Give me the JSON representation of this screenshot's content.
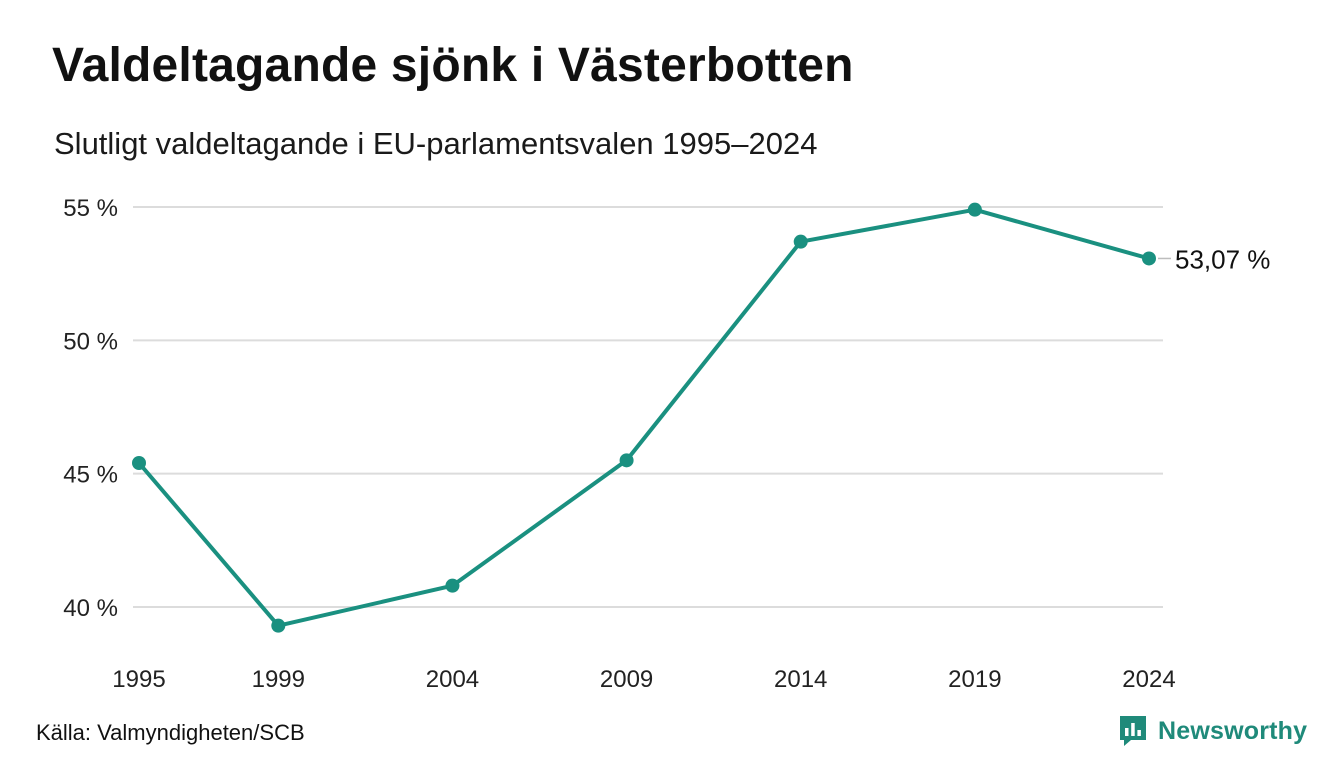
{
  "title": "Valdeltagande sjönk i Västerbotten",
  "subtitle": "Slutligt valdeltagande i EU-parlamentsvalen 1995–2024",
  "source": "Källa: Valmyndigheten/SCB",
  "brand": {
    "name": "Newsworthy",
    "icon": "newsworthy-logo-icon",
    "color": "#1f8a7a"
  },
  "chart_data": {
    "type": "line",
    "x": [
      1995,
      1999,
      2004,
      2009,
      2014,
      2019,
      2024
    ],
    "x_tick_labels": [
      "1995",
      "1999",
      "2004",
      "2009",
      "2014",
      "2019",
      "2024"
    ],
    "series": [
      {
        "values": [
          45.4,
          39.3,
          40.8,
          45.5,
          53.7,
          54.9,
          53.07
        ],
        "color": "#1a9080"
      }
    ],
    "y_ticks": [
      40,
      45,
      50,
      55
    ],
    "y_tick_labels": [
      "40 %",
      "45 %",
      "50 %",
      "55 %"
    ],
    "ylim": [
      38.5,
      55
    ],
    "end_label": "53,07 %",
    "grid": "horizontal",
    "markers": true
  }
}
